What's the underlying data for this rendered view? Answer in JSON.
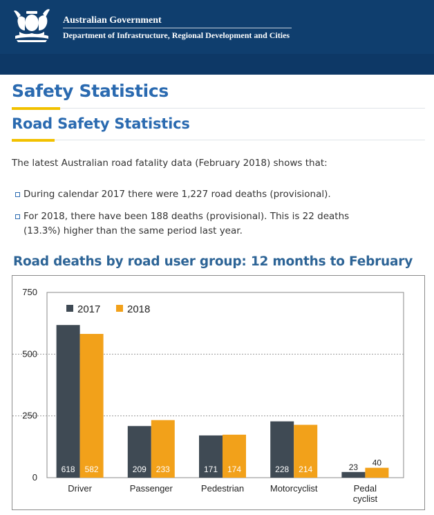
{
  "header": {
    "government": "Australian Government",
    "department": "Department of Infrastructure, Regional Development and Cities"
  },
  "page": {
    "title": "Safety Statistics",
    "subtitle": "Road Safety Statistics",
    "intro": "The latest Australian road fatality data (February 2018) shows that:",
    "bullets": [
      "During calendar 2017 there were 1,227 road deaths (provisional).",
      "For 2018, there have been 188 deaths (provisional). This is 22 deaths (13.3%) higher than the same period last year."
    ]
  },
  "colors": {
    "header_bg": "#0f3e6e",
    "heading": "#2a6ab0",
    "accent_underline": "#f2c100",
    "series_2017": "#3f4a54",
    "series_2018": "#f2a11a"
  },
  "chart_data": {
    "type": "bar",
    "title": "Road deaths by road user group: 12 months to February",
    "categories": [
      "Driver",
      "Passenger",
      "Pedestrian",
      "Motorcyclist",
      "Pedal cyclist"
    ],
    "category_lines": [
      [
        "Driver"
      ],
      [
        "Passenger"
      ],
      [
        "Pedestrian"
      ],
      [
        "Motorcyclist"
      ],
      [
        "Pedal",
        "cyclist"
      ]
    ],
    "series": [
      {
        "name": "2017",
        "values": [
          618,
          209,
          171,
          228,
          23
        ],
        "color": "#3f4a54"
      },
      {
        "name": "2018",
        "values": [
          582,
          233,
          174,
          214,
          40
        ],
        "color": "#f2a11a"
      }
    ],
    "yticks": [
      0,
      250,
      500,
      750
    ],
    "ylim": [
      0,
      750
    ],
    "grid": true,
    "legend": "top-left",
    "data_labels": true
  }
}
